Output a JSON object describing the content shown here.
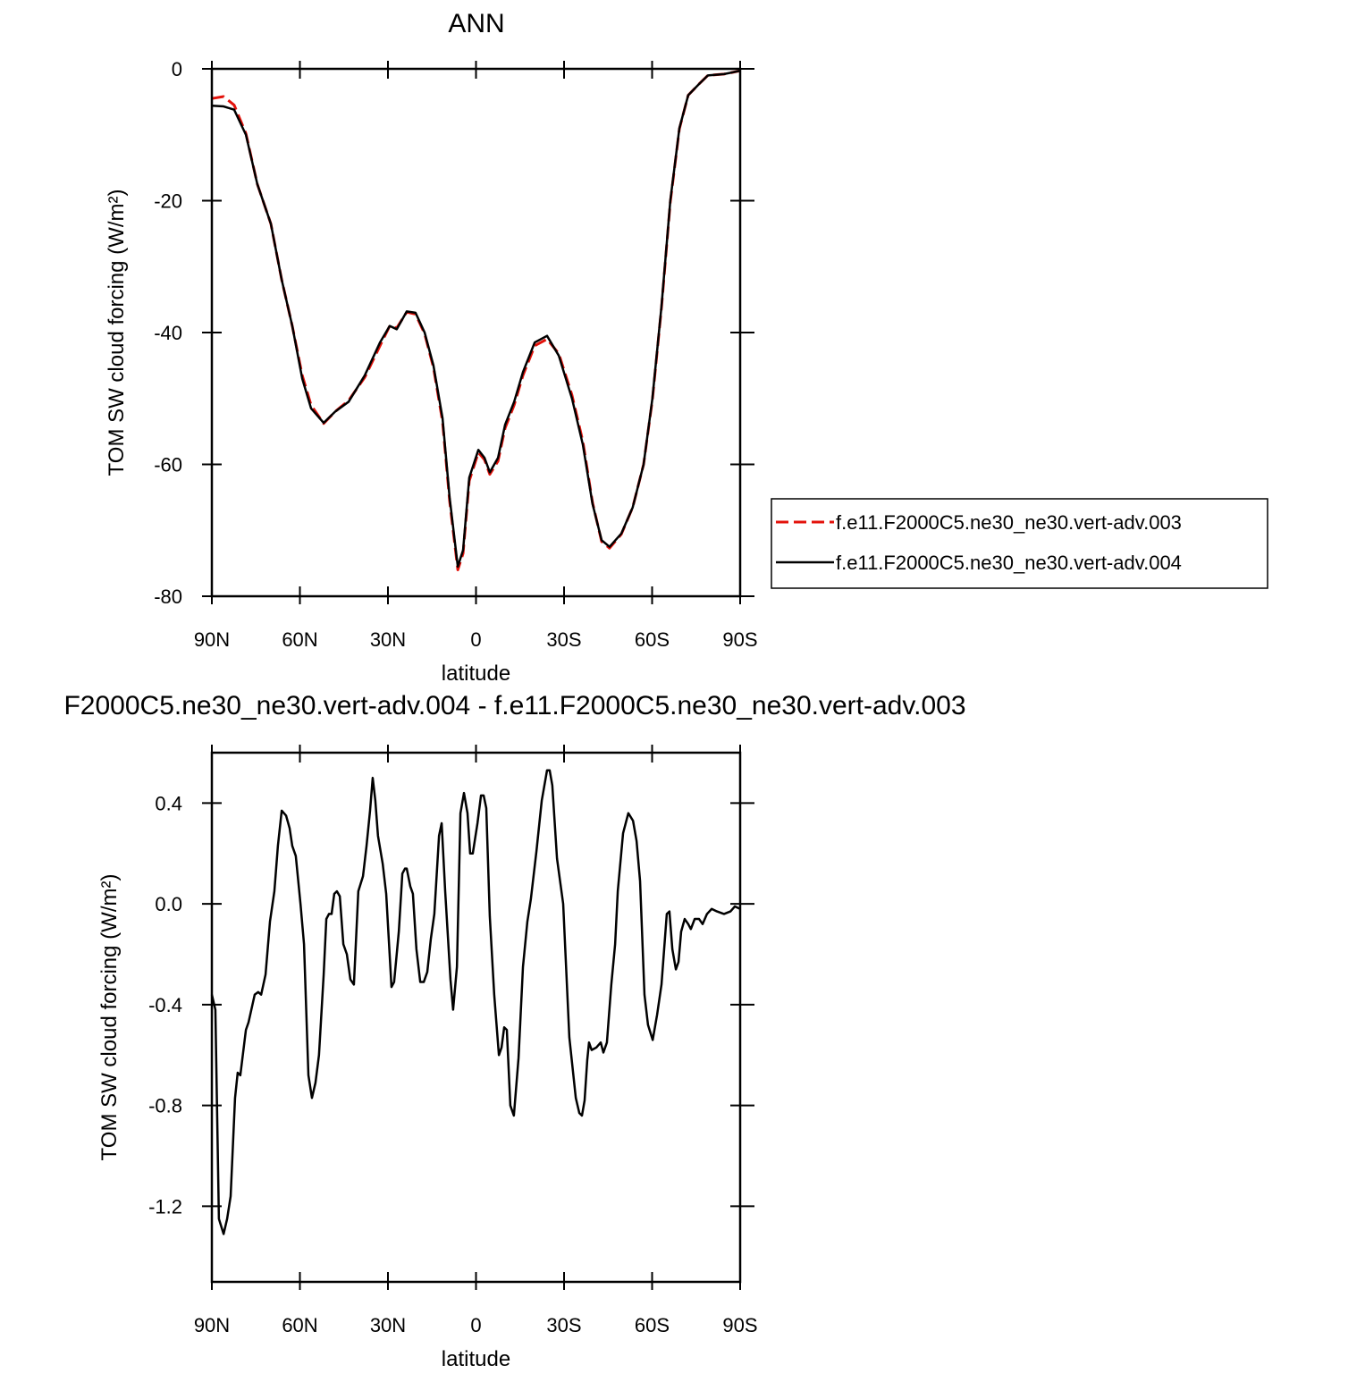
{
  "chart_data": [
    {
      "type": "line",
      "title": "ANN",
      "x_label": "latitude",
      "y_label": "TOM SW cloud forcing (W/m²)",
      "xlim": [
        90,
        -90
      ],
      "xticks": [
        {
          "value": 90,
          "label": "90N"
        },
        {
          "value": 60,
          "label": "60N"
        },
        {
          "value": 30,
          "label": "30N"
        },
        0,
        {
          "value": -30,
          "label": "30S"
        },
        {
          "value": -60,
          "label": "60S"
        },
        {
          "value": -90,
          "label": "90S"
        }
      ],
      "ylim": [
        -80,
        0
      ],
      "yticks": [
        0,
        -20,
        -40,
        -60,
        -80
      ],
      "legend": "right",
      "x": [
        90,
        86,
        82.4,
        78.4,
        74.5,
        69.9,
        66.2,
        62.6,
        59.2,
        56.2,
        51.9,
        48,
        43.4,
        37.9,
        32.7,
        29.4,
        27,
        23.6,
        20.6,
        17.5,
        14.5,
        11.4,
        9,
        6.2,
        4.4,
        2.3,
        -0.8,
        -2.9,
        -4.7,
        -7.5,
        -9.9,
        -13,
        -16,
        -20,
        -24.2,
        -28.2,
        -32.7,
        -36.4,
        -39.7,
        -42.8,
        -45.5,
        -49.5,
        -53.4,
        -57.1,
        -60.1,
        -63.2,
        -66.2,
        -69.3,
        -72.3,
        -76,
        -79,
        -84.5,
        -90
      ],
      "series": [
        {
          "name": "f.e11.F2000C5.ne30_ne30.vert-adv.003",
          "color": "#e3120b",
          "dashed": true,
          "values": [
            -4.5,
            -4.2,
            -5.5,
            -9.8,
            -17.5,
            -23.5,
            -32,
            -39,
            -46.5,
            -51,
            -53.8,
            -52,
            -50.3,
            -46.8,
            -42,
            -39,
            -39.3,
            -36.9,
            -37.2,
            -40.2,
            -45.3,
            -53.5,
            -65.5,
            -76,
            -73.5,
            -62.5,
            -58.2,
            -59.3,
            -61.5,
            -59.5,
            -54.5,
            -51,
            -46.5,
            -42,
            -41,
            -43.2,
            -49.5,
            -56.5,
            -65.8,
            -71.7,
            -72.7,
            -70.6,
            -66.5,
            -60,
            -50.2,
            -36.2,
            -20.2,
            -9.1,
            -4,
            -2.3,
            -1,
            -0.8,
            -0.3
          ]
        },
        {
          "name": "f.e11.F2000C5.ne30_ne30.vert-adv.004",
          "color": "#000000",
          "dashed": false,
          "values": [
            -5.6,
            -5.7,
            -6.2,
            -10,
            -17.5,
            -23.5,
            -32,
            -39,
            -47,
            -51.5,
            -53.7,
            -52,
            -50.5,
            -46.5,
            -41.5,
            -39,
            -39.5,
            -36.8,
            -37,
            -40,
            -45,
            -53,
            -65,
            -75.5,
            -73,
            -62,
            -57.8,
            -59,
            -61.2,
            -59,
            -54,
            -50.5,
            -46,
            -41.5,
            -40.5,
            -43.5,
            -50,
            -57,
            -66,
            -71.5,
            -72.5,
            -70.5,
            -66.5,
            -60,
            -50,
            -36,
            -20,
            -9,
            -4,
            -2.3,
            -1,
            -0.8,
            -0.3
          ]
        }
      ]
    },
    {
      "type": "line",
      "title": "F2000C5.ne30_ne30.vert-adv.004 - f.e11.F2000C5.ne30_ne30.vert-adv.003",
      "x_label": "latitude",
      "y_label": "TOM SW cloud forcing (W/m²)",
      "xlim": [
        90,
        -90
      ],
      "xticks": [
        {
          "value": 90,
          "label": "90N"
        },
        {
          "value": 60,
          "label": "60N"
        },
        {
          "value": 30,
          "label": "30N"
        },
        0,
        {
          "value": -30,
          "label": "30S"
        },
        {
          "value": -60,
          "label": "60S"
        },
        {
          "value": -90,
          "label": "90S"
        }
      ],
      "ylim": [
        -1.5,
        0.6
      ],
      "yticks": [
        0.4,
        {
          "value": 0,
          "label": "0.0"
        },
        -0.4,
        -0.8,
        -1.2
      ],
      "x": [
        90,
        88.8,
        87.6,
        86,
        84.8,
        83.6,
        82.1,
        81.2,
        80.3,
        78.4,
        77.5,
        75.4,
        74.2,
        73.2,
        71.7,
        70.2,
        68.7,
        67.5,
        66.2,
        64.7,
        63.5,
        62.6,
        61.4,
        59.8,
        58.6,
        57.1,
        55.9,
        54.7,
        53.5,
        51.9,
        51,
        50.1,
        49.2,
        48.3,
        47.4,
        46.4,
        45.2,
        44,
        42.8,
        41.6,
        40.1,
        38.5,
        37.3,
        36.1,
        35.2,
        34.3,
        33.4,
        31.8,
        30.6,
        28.8,
        27.9,
        26.3,
        25.1,
        24.2,
        23.6,
        22.4,
        21.5,
        20.3,
        19,
        17.8,
        16.6,
        15.4,
        14.2,
        12.6,
        11.7,
        10.5,
        8.7,
        7.8,
        6.5,
        5.3,
        4.1,
        2.9,
        2,
        1.1,
        -0.5,
        -1.7,
        -2.6,
        -3.5,
        -4.7,
        -6.2,
        -7.8,
        -8.7,
        -9.6,
        -10.5,
        -11.7,
        -12.9,
        -14.5,
        -16,
        -17.5,
        -18.7,
        -20.6,
        -22.4,
        -24.2,
        -25.1,
        -26,
        -27.6,
        -29.7,
        -31.8,
        -34,
        -35.2,
        -36.1,
        -37,
        -37.9,
        -38.5,
        -39.4,
        -41,
        -42.5,
        -43.4,
        -44.6,
        -46.1,
        -47.4,
        -48.3,
        -50.1,
        -51.9,
        -53.5,
        -54.7,
        -55.9,
        -57.4,
        -58.6,
        -60.2,
        -61.7,
        -63.2,
        -64.1,
        -65,
        -65.9,
        -66.9,
        -68.1,
        -69,
        -69.9,
        -71.1,
        -72.3,
        -73.2,
        -74.5,
        -76,
        -77.2,
        -78.7,
        -80.3,
        -82.1,
        -84.5,
        -86.7,
        -88.2,
        -90
      ],
      "series": [
        {
          "color": "#000000",
          "dashed": false,
          "values": [
            -0.36,
            -0.42,
            -1.25,
            -1.31,
            -1.25,
            -1.16,
            -0.77,
            -0.67,
            -0.68,
            -0.5,
            -0.47,
            -0.36,
            -0.35,
            -0.36,
            -0.28,
            -0.07,
            0.05,
            0.23,
            0.37,
            0.35,
            0.3,
            0.23,
            0.19,
            0,
            -0.16,
            -0.68,
            -0.77,
            -0.71,
            -0.6,
            -0.28,
            -0.06,
            -0.04,
            -0.04,
            0.04,
            0.05,
            0.03,
            -0.16,
            -0.2,
            -0.3,
            -0.32,
            0.05,
            0.11,
            0.23,
            0.37,
            0.5,
            0.41,
            0.27,
            0.16,
            0.04,
            -0.33,
            -0.31,
            -0.11,
            0.12,
            0.14,
            0.14,
            0.07,
            0.04,
            -0.18,
            -0.31,
            -0.31,
            -0.27,
            -0.14,
            -0.04,
            0.27,
            0.32,
            0.05,
            -0.3,
            -0.42,
            -0.25,
            0.36,
            0.44,
            0.36,
            0.2,
            0.2,
            0.32,
            0.43,
            0.43,
            0.38,
            -0.05,
            -0.36,
            -0.6,
            -0.57,
            -0.49,
            -0.5,
            -0.8,
            -0.84,
            -0.61,
            -0.25,
            -0.07,
            0.02,
            0.21,
            0.41,
            0.53,
            0.53,
            0.47,
            0.18,
            0,
            -0.53,
            -0.77,
            -0.83,
            -0.84,
            -0.78,
            -0.62,
            -0.55,
            -0.58,
            -0.57,
            -0.55,
            -0.59,
            -0.55,
            -0.32,
            -0.16,
            0.05,
            0.28,
            0.36,
            0.33,
            0.25,
            0.09,
            -0.36,
            -0.48,
            -0.54,
            -0.44,
            -0.32,
            -0.18,
            -0.04,
            -0.03,
            -0.18,
            -0.26,
            -0.23,
            -0.11,
            -0.06,
            -0.08,
            -0.1,
            -0.06,
            -0.06,
            -0.08,
            -0.04,
            -0.02,
            -0.03,
            -0.04,
            -0.03,
            -0.01,
            -0.02
          ]
        }
      ]
    }
  ]
}
